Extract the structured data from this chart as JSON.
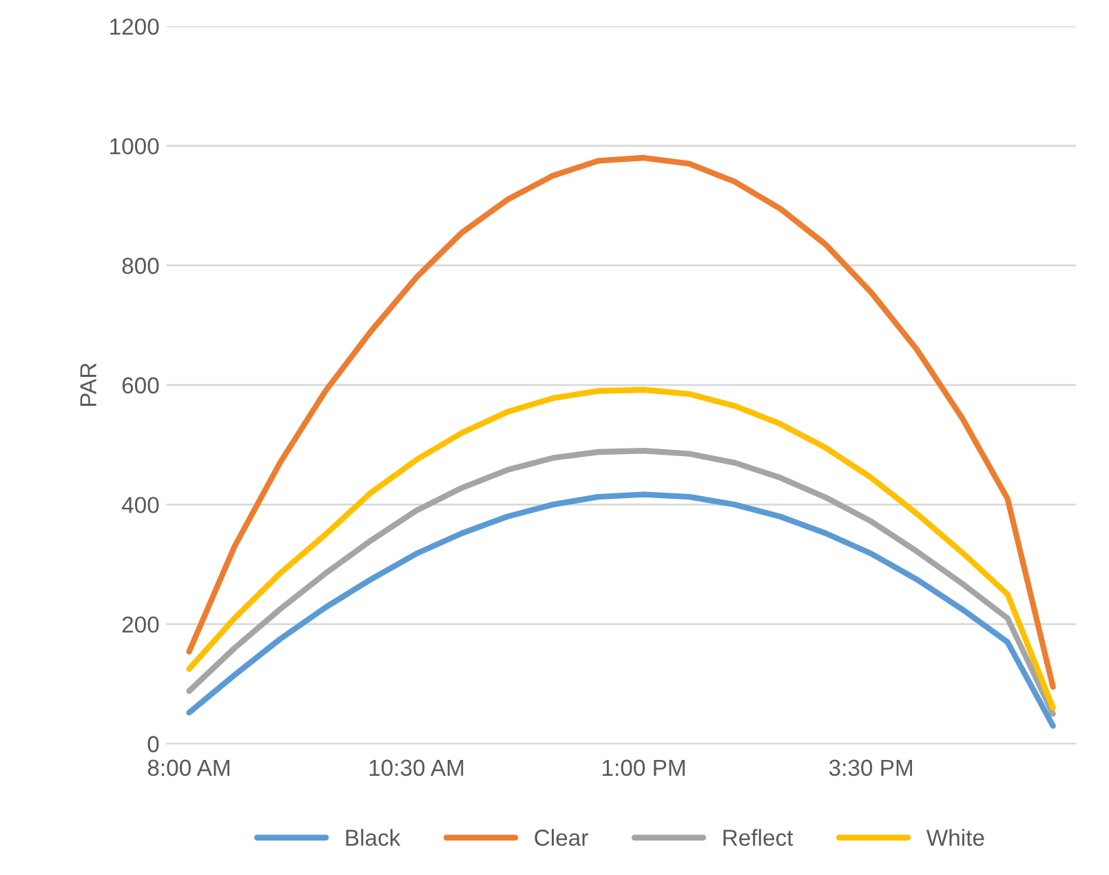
{
  "chart_data": {
    "type": "line",
    "ylabel": "PAR",
    "categories": [
      "8:00 AM",
      null,
      null,
      null,
      null,
      "10:30 AM",
      null,
      null,
      null,
      null,
      "1:00 PM",
      null,
      null,
      null,
      null,
      "3:30 PM",
      null,
      null,
      null,
      null
    ],
    "series": [
      {
        "name": "Black",
        "color": "#5b9bd5",
        "values": [
          52,
          115,
          175,
          228,
          275,
          318,
          352,
          380,
          400,
          413,
          417,
          413,
          400,
          380,
          352,
          318,
          275,
          225,
          170,
          30
        ]
      },
      {
        "name": "Clear",
        "color": "#ed7d31",
        "values": [
          154,
          330,
          470,
          590,
          690,
          780,
          855,
          910,
          950,
          975,
          980,
          970,
          940,
          895,
          835,
          755,
          660,
          545,
          410,
          95
        ]
      },
      {
        "name": "Reflect",
        "color": "#a5a5a5",
        "values": [
          88,
          160,
          225,
          285,
          340,
          390,
          428,
          458,
          478,
          488,
          490,
          485,
          470,
          445,
          412,
          372,
          322,
          268,
          210,
          50
        ]
      },
      {
        "name": "White",
        "color": "#ffc000",
        "values": [
          125,
          210,
          285,
          350,
          420,
          475,
          520,
          555,
          578,
          590,
          592,
          585,
          565,
          535,
          495,
          445,
          385,
          320,
          250,
          60
        ]
      }
    ],
    "ylim": [
      0,
      1200
    ],
    "yticks": [
      0,
      200,
      400,
      600,
      800,
      1000,
      1200
    ],
    "grid": "y",
    "legend": "bottom",
    "marker": "none",
    "line_style": "solid"
  }
}
